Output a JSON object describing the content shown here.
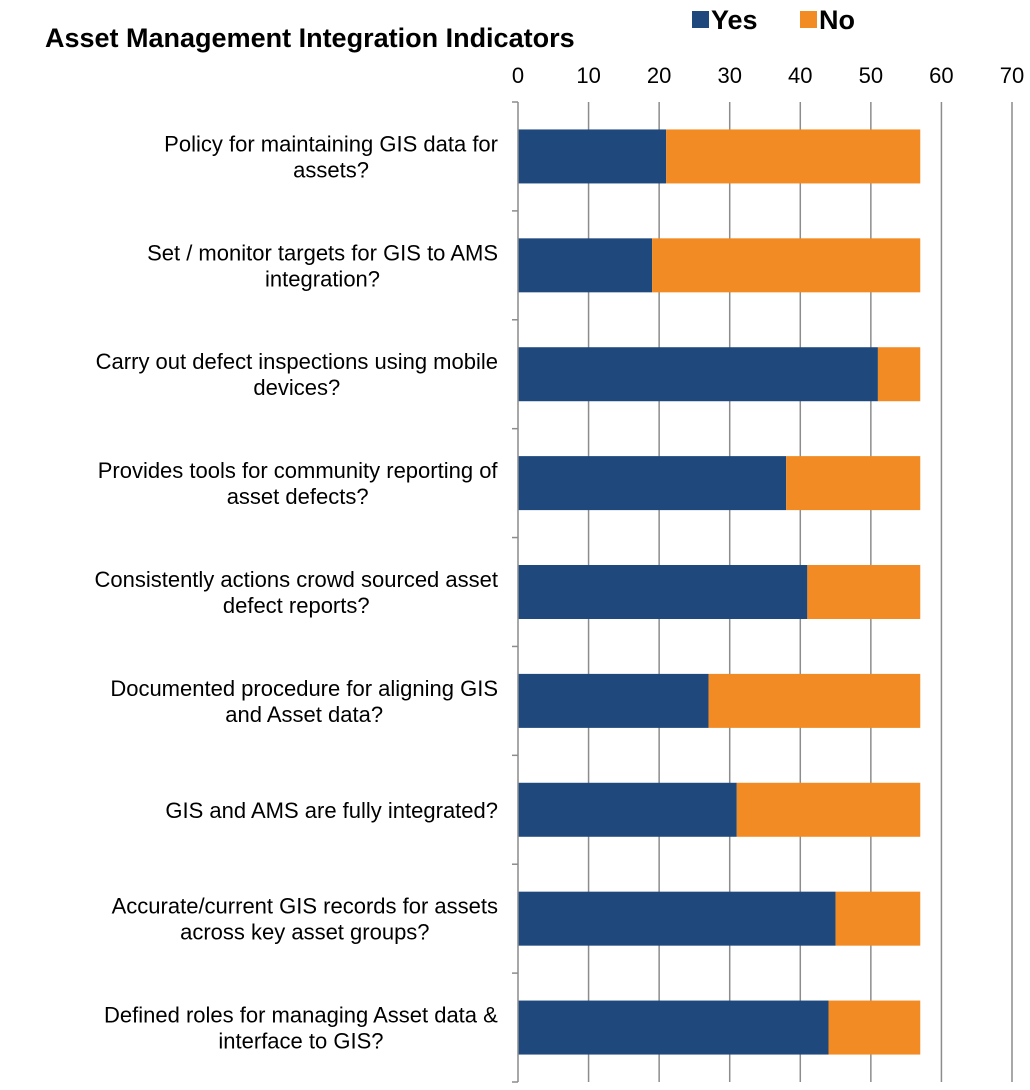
{
  "chart_data": {
    "type": "bar",
    "orientation": "horizontal",
    "stacked": true,
    "title": "Asset Management Integration Indicators",
    "xlabel": "",
    "ylabel": "",
    "xlim": [
      0,
      70
    ],
    "x_ticks": [
      "0",
      "10",
      "20",
      "30",
      "40",
      "50",
      "60",
      "70"
    ],
    "x_axis_position": "top",
    "grid": true,
    "legend_position": "top",
    "categories": [
      [
        "Policy for maintaining GIS data for",
        "assets?"
      ],
      [
        "Set / monitor targets for GIS to AMS",
        "integration?"
      ],
      [
        "Carry out defect inspections using mobile",
        "devices?"
      ],
      [
        "Provides tools for community reporting of",
        "asset defects?"
      ],
      [
        "Consistently actions crowd sourced asset",
        "defect reports?"
      ],
      [
        "Documented procedure for aligning GIS",
        "and Asset data?"
      ],
      [
        "GIS and AMS are fully integrated?"
      ],
      [
        "Accurate/current GIS records for assets",
        "across key asset groups?"
      ],
      [
        "Defined roles for managing Asset data &",
        "interface to GIS?"
      ]
    ],
    "series": [
      {
        "name": "Yes",
        "color": "#1f497d",
        "values": [
          21,
          19,
          51,
          38,
          41,
          27,
          31,
          45,
          44
        ]
      },
      {
        "name": "No",
        "color": "#f28b24",
        "values": [
          36,
          38,
          6,
          19,
          16,
          30,
          26,
          12,
          13
        ]
      }
    ]
  }
}
